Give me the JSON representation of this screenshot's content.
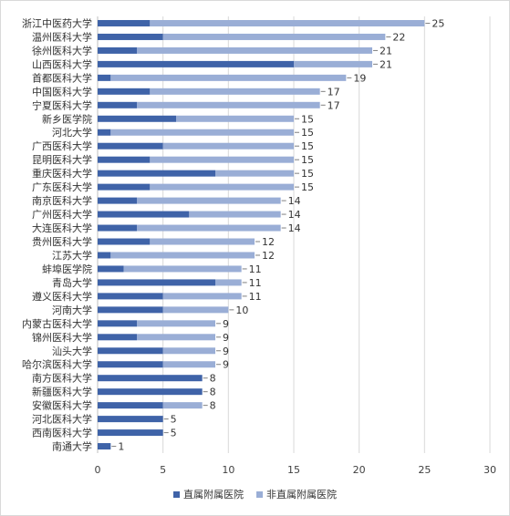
{
  "chart_data": {
    "type": "bar",
    "orientation": "horizontal",
    "stacked": true,
    "title": "",
    "xlabel": "",
    "ylabel": "",
    "xlim": [
      0,
      30
    ],
    "xticks": [
      0,
      5,
      10,
      15,
      20,
      25,
      30
    ],
    "grid": true,
    "legend_position": "bottom",
    "categories": [
      "浙江中医药大学",
      "温州医科大学",
      "徐州医科大学",
      "山西医科大学",
      "首都医科大学",
      "中国医科大学",
      "宁夏医科大学",
      "新乡医学院",
      "河北大学",
      "广西医科大学",
      "昆明医科大学",
      "重庆医科大学",
      "广东医科大学",
      "南京医科大学",
      "广州医科大学",
      "大连医科大学",
      "贵州医科大学",
      "江苏大学",
      "蚌埠医学院",
      "青岛大学",
      "遵义医科大学",
      "河南大学",
      "内蒙古医科大学",
      "锦州医科大学",
      "汕头大学",
      "哈尔滨医科大学",
      "南方医科大学",
      "新疆医科大学",
      "安徽医科大学",
      "河北医科大学",
      "西南医科大学",
      "南通大学"
    ],
    "totals": [
      25,
      22,
      21,
      21,
      19,
      17,
      17,
      15,
      15,
      15,
      15,
      15,
      15,
      14,
      14,
      14,
      12,
      12,
      11,
      11,
      11,
      10,
      9,
      9,
      9,
      9,
      8,
      8,
      8,
      5,
      5,
      1
    ],
    "series": [
      {
        "name": "直属附属医院",
        "color": "#3f63a8",
        "values": [
          4,
          5,
          3,
          15,
          1,
          4,
          3,
          6,
          1,
          5,
          4,
          9,
          4,
          3,
          7,
          3,
          4,
          1,
          2,
          9,
          5,
          5,
          3,
          3,
          5,
          5,
          8,
          8,
          5,
          5,
          5,
          1
        ]
      },
      {
        "name": "非直属附属医院",
        "color": "#9aaed6",
        "values": [
          21,
          17,
          18,
          6,
          18,
          13,
          14,
          9,
          14,
          10,
          11,
          6,
          11,
          11,
          7,
          11,
          8,
          11,
          9,
          2,
          6,
          5,
          6,
          6,
          4,
          4,
          0,
          0,
          3,
          0,
          0,
          0
        ]
      }
    ]
  }
}
